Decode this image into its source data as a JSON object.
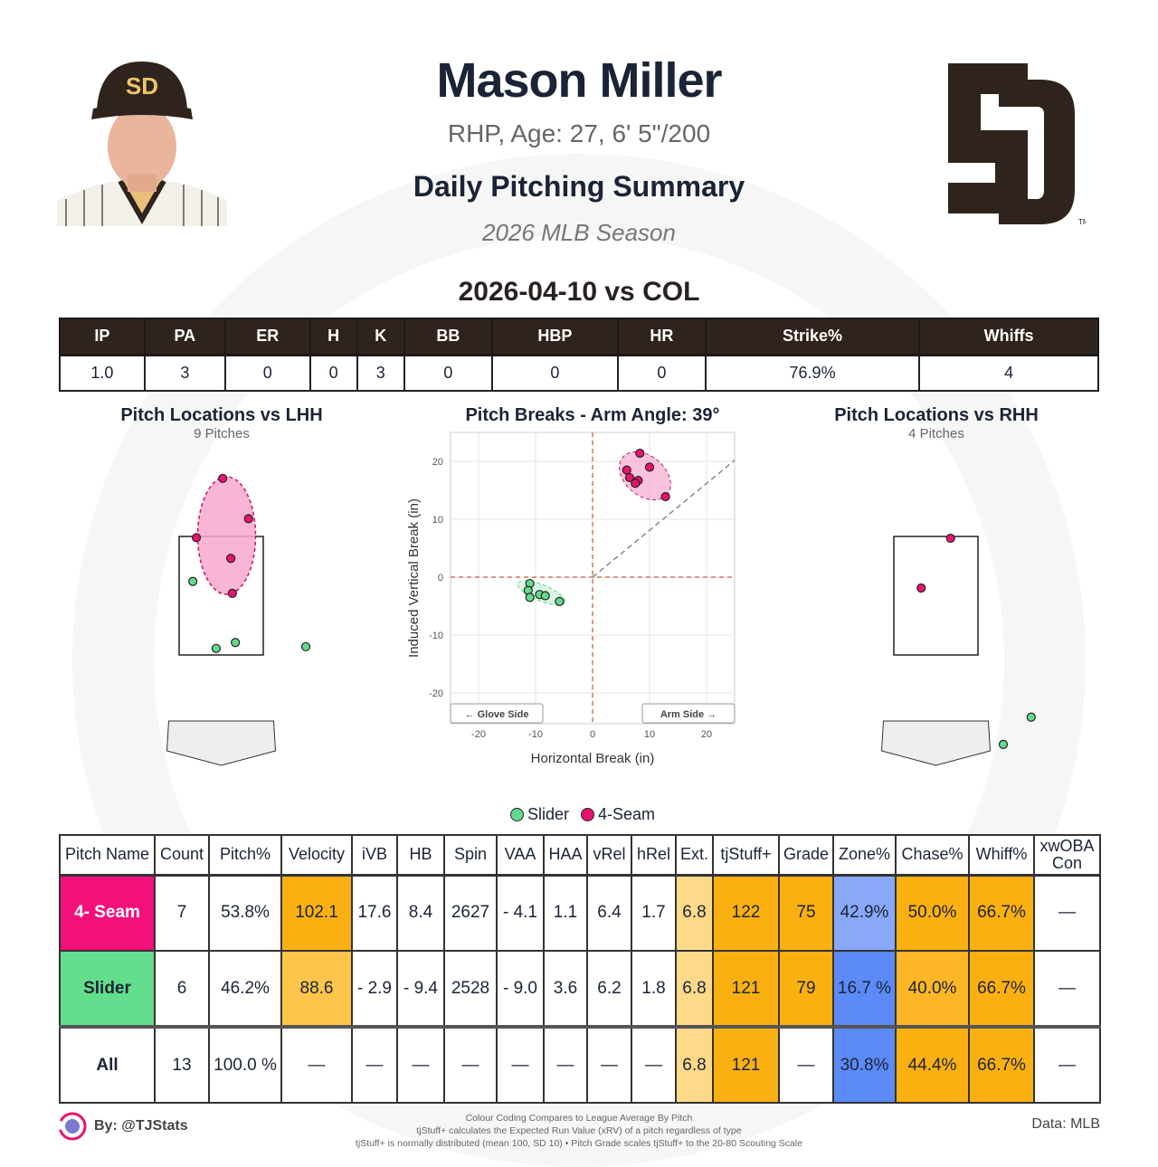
{
  "header": {
    "name": "Mason Miller",
    "bio": "RHP, Age: 27, 6' 5\"/200",
    "report": "Daily Pitching Summary",
    "season": "2026 MLB Season",
    "game": "2026-04-10 vs COL",
    "team_logo_text": "SD",
    "trademark": "TM"
  },
  "game_stats": {
    "headers": [
      "IP",
      "PA",
      "ER",
      "H",
      "K",
      "BB",
      "HBP",
      "HR",
      "Strike%",
      "Whiffs"
    ],
    "values": [
      "1.0",
      "3",
      "0",
      "0",
      "3",
      "0",
      "0",
      "0",
      "76.9%",
      "4"
    ]
  },
  "chart_data": [
    {
      "type": "scatter",
      "title": "Pitch Locations vs LHH",
      "subtitle": "9 Pitches",
      "units": "ft (plate_x, plate_z)",
      "series": [
        {
          "name": "4-Seam",
          "color": "#e8136e",
          "points": [
            [
              0.03,
              4.48
            ],
            [
              0.54,
              3.8
            ],
            [
              -0.49,
              3.48
            ],
            [
              0.19,
              3.13
            ],
            [
              0.22,
              2.54
            ]
          ]
        },
        {
          "name": "Slider",
          "color": "#63d98c",
          "points": [
            [
              -0.56,
              2.74
            ],
            [
              -0.1,
              1.61
            ],
            [
              0.28,
              1.71
            ],
            [
              1.67,
              1.64
            ]
          ]
        }
      ]
    },
    {
      "type": "scatter",
      "title": "Pitch Breaks - Arm Angle: 39°",
      "xlabel": "Horizontal Break (in)",
      "ylabel": "Induced Vertical Break (in)",
      "xlim": [
        -25,
        25
      ],
      "ylim": [
        -25,
        25
      ],
      "xticks": [
        -20,
        -10,
        0,
        10,
        20
      ],
      "yticks": [
        -20,
        -10,
        0,
        10,
        20
      ],
      "grid": true,
      "annotations": [
        "← Glove Side",
        "Arm Side →"
      ],
      "arm_angle": 39,
      "series": [
        {
          "name": "4-Seam",
          "color": "#e8136e",
          "points": [
            [
              8.3,
              21.4
            ],
            [
              10,
              19
            ],
            [
              6,
              18.5
            ],
            [
              6.5,
              17.2
            ],
            [
              8,
              16.7
            ],
            [
              7.5,
              16.2
            ],
            [
              12.8,
              13.9
            ]
          ]
        },
        {
          "name": "Slider",
          "color": "#63d98c",
          "points": [
            [
              -11,
              -1.1
            ],
            [
              -11.3,
              -2.3
            ],
            [
              -11,
              -3.5
            ],
            [
              -9.3,
              -3
            ],
            [
              -8.3,
              -3.2
            ],
            [
              -5.8,
              -4.2
            ]
          ]
        }
      ]
    },
    {
      "type": "scatter",
      "title": "Pitch Locations vs RHH",
      "subtitle": "4 Pitches",
      "units": "ft (plate_x, plate_z)",
      "series": [
        {
          "name": "4-Seam",
          "color": "#e8136e",
          "points": [
            [
              0.29,
              3.47
            ],
            [
              -0.29,
              2.63
            ]
          ]
        },
        {
          "name": "Slider",
          "color": "#63d98c",
          "points": [
            [
              1.88,
              0.45
            ],
            [
              1.33,
              -0.01
            ]
          ]
        }
      ]
    }
  ],
  "legend": [
    {
      "label": "Slider",
      "color": "#63d98c"
    },
    {
      "label": "4-Seam",
      "color": "#e8136e"
    }
  ],
  "pitch_table": {
    "headers": [
      "Pitch Name",
      "Count",
      "Pitch%",
      "Velocity",
      "iVB",
      "HB",
      "Spin",
      "VAA",
      "HAA",
      "vRel",
      "hRel",
      "Ext.",
      "tjStuff+",
      "Grade",
      "Zone%",
      "Chase%",
      "Whiff%",
      "xwOBA Con"
    ],
    "rows": [
      {
        "values": [
          "4- Seam",
          "7",
          "53.8%",
          "102.1",
          "17.6",
          "8.4",
          "2627",
          "- 4.1",
          "1.1",
          "6.4",
          "1.7",
          "6.8",
          "122",
          "75",
          "42.9%",
          "50.0%",
          "66.7%",
          "—"
        ],
        "colors": [
          "#f2107a",
          "#fff",
          "#fff",
          "#fbb012",
          "#fff",
          "#fff",
          "#fff",
          "#fff",
          "#fff",
          "#fff",
          "#fff",
          "#fdd98a",
          "#fbb012",
          "#fbb012",
          "#8aa8fa",
          "#fbb012",
          "#fbb012",
          "#fff"
        ]
      },
      {
        "values": [
          "Slider",
          "6",
          "46.2%",
          "88.6",
          "- 2.9",
          "- 9.4",
          "2528",
          "- 9.0",
          "3.6",
          "6.2",
          "1.8",
          "6.8",
          "121",
          "79",
          "16.7 %",
          "40.0%",
          "66.7%",
          "—"
        ],
        "colors": [
          "#63de8c",
          "#fff",
          "#fff",
          "#fdc54a",
          "#fff",
          "#fff",
          "#fff",
          "#fff",
          "#fff",
          "#fff",
          "#fff",
          "#fdd98a",
          "#fbb012",
          "#fbb012",
          "#5c8af6",
          "#fcb626",
          "#fbb012",
          "#fff"
        ]
      },
      {
        "values": [
          "All",
          "13",
          "100.0 %",
          "—",
          "—",
          "—",
          "—",
          "—",
          "—",
          "—",
          "—",
          "6.8",
          "121",
          "—",
          "30.8%",
          "44.4%",
          "66.7%",
          "—"
        ],
        "colors": [
          "#fff",
          "#fff",
          "#fff",
          "#fff",
          "#fff",
          "#fff",
          "#fff",
          "#fff",
          "#fff",
          "#fff",
          "#fff",
          "#fdd98a",
          "#fbb012",
          "#fff",
          "#5c8af6",
          "#fbb012",
          "#fbb012",
          "#fff"
        ]
      }
    ]
  },
  "footer": {
    "byline": "By: @TJStats",
    "source": "Data: MLB",
    "notes": [
      "Colour Coding Compares to League Average By Pitch",
      "tjStuff+ calculates the Expected Run Value (xRV) of a pitch regardless of type",
      "tjStuff+ is normally distributed (mean 100, SD 10) • Pitch Grade scales tjStuff+ to the 20-80 Scouting Scale"
    ]
  }
}
